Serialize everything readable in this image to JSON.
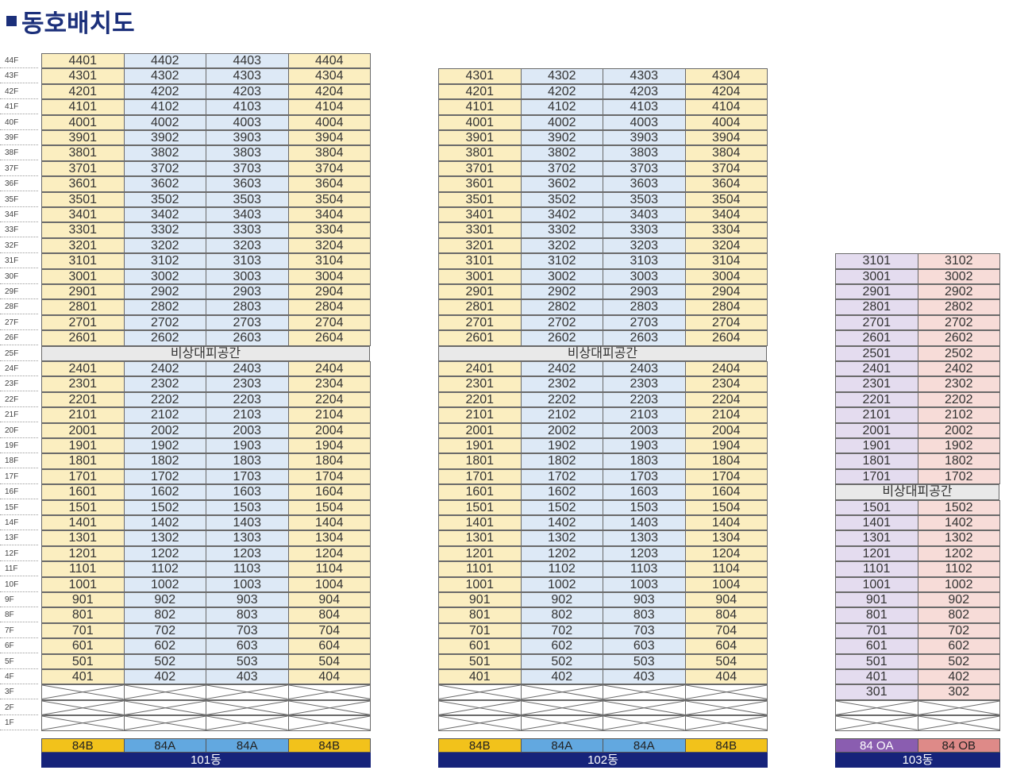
{
  "title": "동호배치도",
  "floors": [
    "44F",
    "43F",
    "42F",
    "41F",
    "40F",
    "39F",
    "38F",
    "37F",
    "36F",
    "35F",
    "34F",
    "33F",
    "32F",
    "31F",
    "30F",
    "29F",
    "28F",
    "27F",
    "26F",
    "25F",
    "24F",
    "23F",
    "22F",
    "21F",
    "20F",
    "19F",
    "18F",
    "17F",
    "16F",
    "15F",
    "14F",
    "13F",
    "12F",
    "11F",
    "10F",
    "9F",
    "8F",
    "7F",
    "6F",
    "5F",
    "4F",
    "3F",
    "2F",
    "1F"
  ],
  "refuge_label": "비상대피공간",
  "buildings": [
    {
      "name": "101동",
      "top_floor": 44,
      "refuge_floor": 25,
      "pilotis_floors": 3,
      "columns": [
        {
          "unit": "01",
          "type": "84B",
          "color": "#fbeec0"
        },
        {
          "unit": "02",
          "type": "84A",
          "color": "#dde9f6"
        },
        {
          "unit": "03",
          "type": "84A",
          "color": "#dde9f6"
        },
        {
          "unit": "04",
          "type": "84B",
          "color": "#fbeec0"
        }
      ]
    },
    {
      "name": "102동",
      "top_floor": 43,
      "refuge_floor": 25,
      "pilotis_floors": 3,
      "columns": [
        {
          "unit": "01",
          "type": "84B",
          "color": "#fbeec0"
        },
        {
          "unit": "02",
          "type": "84A",
          "color": "#dde9f6"
        },
        {
          "unit": "03",
          "type": "84A",
          "color": "#dde9f6"
        },
        {
          "unit": "04",
          "type": "84B",
          "color": "#fbeec0"
        }
      ]
    },
    {
      "name": "103동",
      "top_floor": 31,
      "refuge_floor": 16,
      "pilotis_floors": 2,
      "columns": [
        {
          "unit": "01",
          "type": "84 OA",
          "color": "#e4dcef"
        },
        {
          "unit": "02",
          "type": "84 OB",
          "color": "#f7dcd8"
        }
      ]
    }
  ],
  "type_colors": {
    "84B": "#f2c21b",
    "84A": "#62a8e0",
    "84 OA": "#8a5db0",
    "84 OB": "#de8a88"
  }
}
